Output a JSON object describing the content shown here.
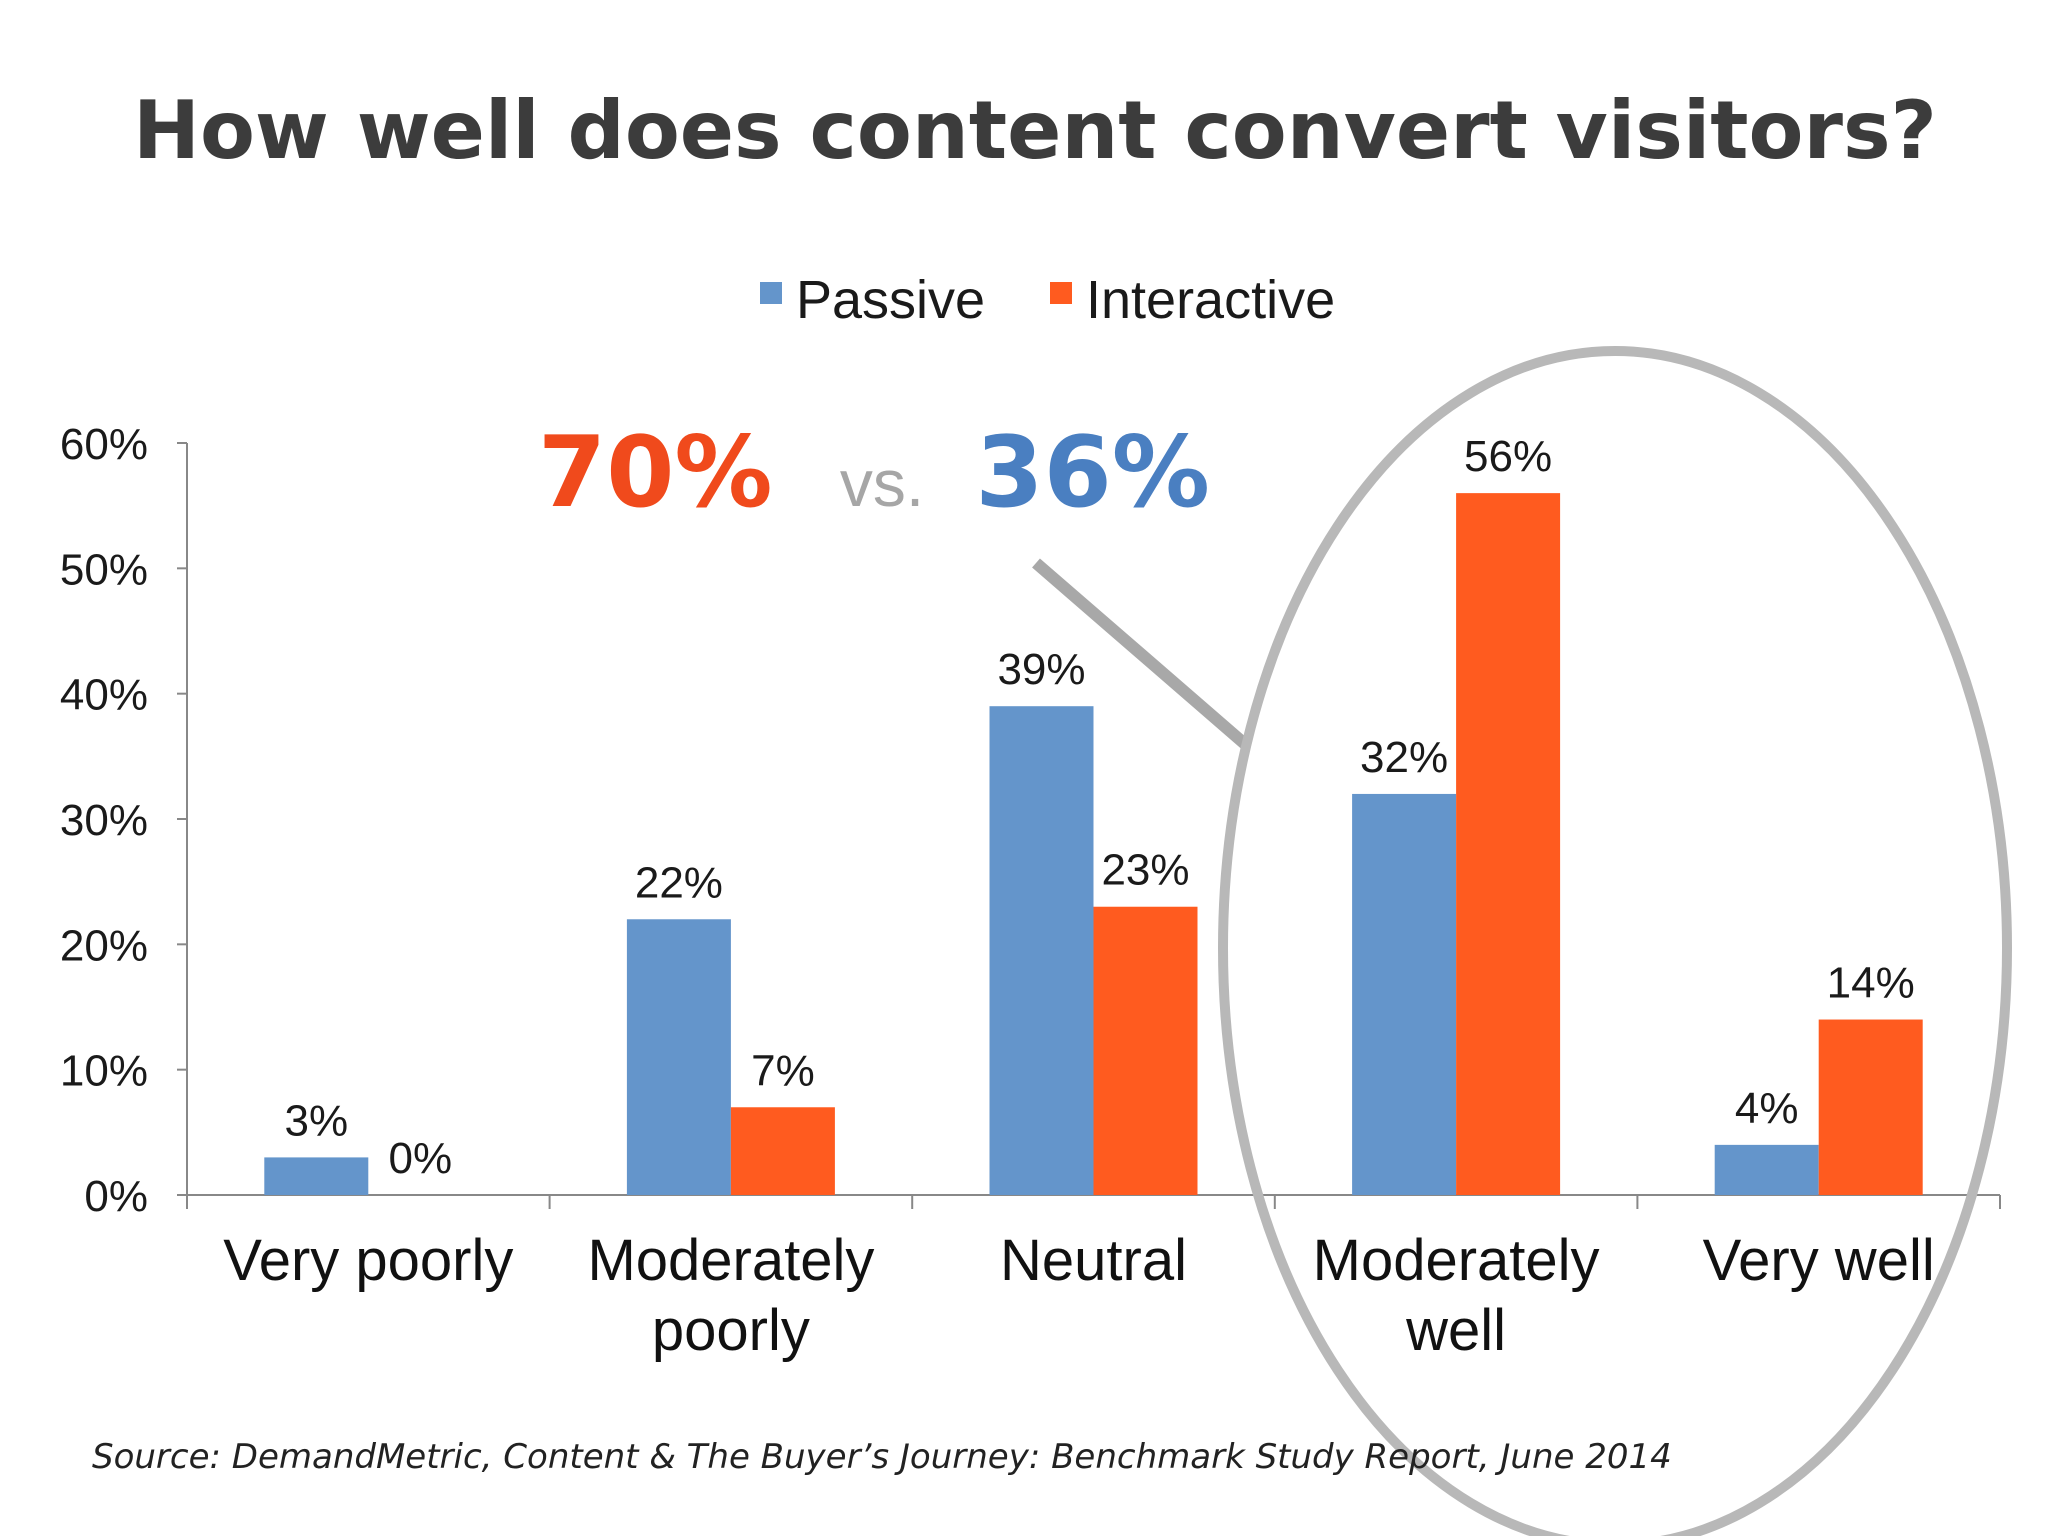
{
  "colors": {
    "passive": "#6495cb",
    "interactive": "#ff5b1f",
    "callout_red": "#f04a1c",
    "callout_blue": "#4a7fc1",
    "callout_gray": "#a6a6a6",
    "ellipse": "#b8b8b8",
    "axis": "#888888"
  },
  "callout": {
    "left": "70%",
    "vs": "vs.",
    "right": "36%"
  },
  "source": "Source: DemandMetric, Content & The Buyer’s Journey: Benchmark Study Report, June 2014",
  "chart_data": {
    "type": "bar",
    "title": "How well does content convert visitors?",
    "xlabel": "",
    "ylabel": "",
    "ylim": [
      0,
      60
    ],
    "yticks": [
      "0%",
      "10%",
      "20%",
      "30%",
      "40%",
      "50%",
      "60%"
    ],
    "ytick_values": [
      0,
      10,
      20,
      30,
      40,
      50,
      60
    ],
    "categories": [
      [
        "Very poorly"
      ],
      [
        "Moderately",
        "poorly"
      ],
      [
        "Neutral"
      ],
      [
        "Moderately",
        "well"
      ],
      [
        "Very well"
      ]
    ],
    "series": [
      {
        "name": "Passive",
        "values": [
          3,
          22,
          39,
          32,
          4
        ],
        "labels": [
          "3%",
          "22%",
          "39%",
          "32%",
          "4%"
        ]
      },
      {
        "name": "Interactive",
        "values": [
          0,
          7,
          23,
          56,
          14
        ],
        "labels": [
          "0%",
          "7%",
          "23%",
          "56%",
          "14%"
        ]
      }
    ],
    "legend": "top-center",
    "grid": false
  }
}
